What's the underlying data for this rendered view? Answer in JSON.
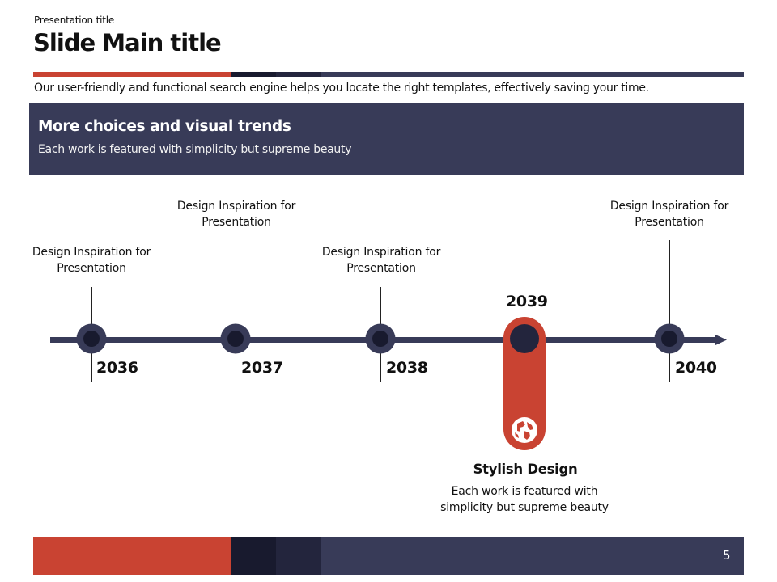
{
  "header": {
    "presentation_title": "Presentation title",
    "main_title": "Slide Main title",
    "subtitle": "Our user-friendly and functional search engine helps you locate the right templates, effectively saving your time."
  },
  "banner": {
    "heading": "More choices and visual trends",
    "text": "Each work is featured with simplicity but supreme beauty"
  },
  "timeline": {
    "milestones": [
      {
        "year": "2036",
        "caption": "Design Inspiration for Presentation"
      },
      {
        "year": "2037",
        "caption": "Design Inspiration for Presentation"
      },
      {
        "year": "2038",
        "caption": "Design Inspiration for Presentation"
      },
      {
        "year": "2039",
        "highlighted": true,
        "icon": "globe-icon"
      },
      {
        "year": "2040",
        "caption": "Design Inspiration for Presentation"
      }
    ],
    "highlight": {
      "title": "Stylish Design",
      "text": "Each work is featured with simplicity but supreme beauty"
    }
  },
  "footer": {
    "page_number": "5"
  },
  "colors": {
    "accent": "#c94332",
    "navy": "#383b58",
    "dark": "#181a2e",
    "dark2": "#23253d",
    "text": "#111111",
    "white": "#ffffff"
  }
}
